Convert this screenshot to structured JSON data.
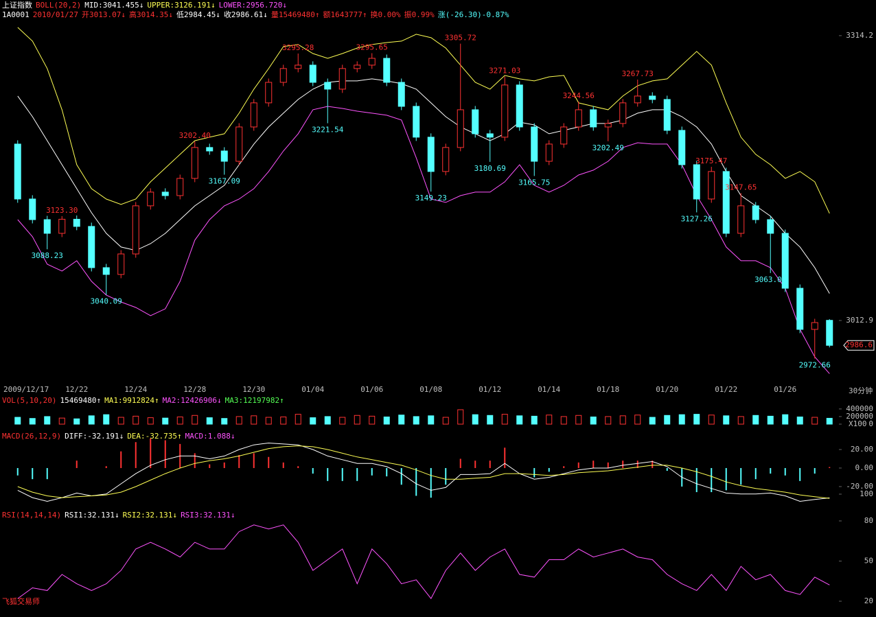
{
  "software": "飞狐交易师",
  "chart_data": [
    {
      "type": "candlestick",
      "header_lines": [
        [
          {
            "text": "上证指数",
            "color": "#ffffff"
          },
          {
            "text": "BOLL(20,2)",
            "color": "#ff3232"
          },
          {
            "text": "MID:3041.455↓",
            "color": "#ffffff"
          },
          {
            "text": "UPPER:3126.191↓",
            "color": "#ffff54"
          },
          {
            "text": "LOWER:2956.720↓",
            "color": "#ff54ff"
          }
        ],
        [
          {
            "text": "1A0001",
            "color": "#ffffff"
          },
          {
            "text": "2010/01/27",
            "color": "#ff3232"
          },
          {
            "text": "开3013.07↓",
            "color": "#ff3232"
          },
          {
            "text": "高3014.35↓",
            "color": "#ff3232"
          },
          {
            "text": "低2984.45↓",
            "color": "#ffffff"
          },
          {
            "text": "收2986.61↓",
            "color": "#ffffff"
          },
          {
            "text": "量15469480↑",
            "color": "#ff3232"
          },
          {
            "text": "额1643777↑",
            "color": "#ff3232"
          },
          {
            "text": "换0.00%",
            "color": "#ff3232"
          },
          {
            "text": "振0.99%",
            "color": "#ff3232"
          },
          {
            "text": "涨(-26.30)-0.87%",
            "color": "#54ffff"
          }
        ]
      ],
      "period": "30分钟",
      "categories": [
        "2009/12/17",
        null,
        null,
        null,
        "12/22",
        null,
        null,
        null,
        "12/24",
        null,
        null,
        null,
        "12/28",
        null,
        null,
        null,
        "12/30",
        null,
        null,
        null,
        "01/04",
        null,
        null,
        null,
        "01/06",
        null,
        null,
        null,
        "01/08",
        null,
        null,
        null,
        "01/12",
        null,
        null,
        null,
        "01/14",
        null,
        null,
        null,
        "01/18",
        null,
        null,
        null,
        "01/20",
        null,
        null,
        null,
        "01/22",
        null,
        null,
        null,
        "01/26",
        null,
        null,
        null
      ],
      "open": [
        3199.5,
        3141.4,
        3119.6,
        3105.1,
        3120.0,
        3112.4,
        3068.8,
        3061.6,
        3083.3,
        3134.2,
        3148.7,
        3145.0,
        3163.2,
        3195.9,
        3192.2,
        3181.3,
        3217.6,
        3243.1,
        3264.8,
        3279.4,
        3283.0,
        3264.8,
        3257.6,
        3279.4,
        3283.0,
        3290.2,
        3264.8,
        3239.4,
        3206.8,
        3170.5,
        3195.9,
        3235.8,
        3210.4,
        3206.8,
        3262.0,
        3217.6,
        3181.3,
        3199.5,
        3217.6,
        3235.8,
        3217.6,
        3221.3,
        3243.1,
        3250.3,
        3246.7,
        3214.0,
        3177.7,
        3141.4,
        3170.5,
        3105.1,
        3134.2,
        3119.6,
        3105.1,
        3047.0,
        3003.5,
        3013.07
      ],
      "high": [
        3203.5,
        3145.4,
        3123.6,
        3123.3,
        3124.0,
        3116.4,
        3072.8,
        3087.3,
        3138.2,
        3152.7,
        3152.7,
        3167.2,
        3202.4,
        3199.9,
        3196.2,
        3221.6,
        3247.1,
        3268.8,
        3283.4,
        3295.28,
        3287.0,
        3268.8,
        3283.4,
        3287.0,
        3295.65,
        3294.2,
        3268.8,
        3243.4,
        3210.8,
        3199.9,
        3305.72,
        3239.8,
        3214.4,
        3271.03,
        3266.0,
        3221.6,
        3203.5,
        3221.6,
        3244.56,
        3239.8,
        3225.3,
        3247.1,
        3267.73,
        3254.3,
        3250.7,
        3218.0,
        3181.7,
        3175.47,
        3174.5,
        3147.65,
        3138.2,
        3123.6,
        3109.1,
        3051.0,
        3014.7,
        3014.35
      ],
      "low": [
        3137.4,
        3115.6,
        3088.23,
        3101.1,
        3108.4,
        3064.8,
        3040.09,
        3057.6,
        3079.3,
        3130.2,
        3141.0,
        3141.0,
        3159.2,
        3188.2,
        3167.09,
        3177.3,
        3213.6,
        3239.1,
        3260.8,
        3275.4,
        3260.8,
        3221.54,
        3253.6,
        3275.4,
        3279.0,
        3260.8,
        3235.4,
        3202.8,
        3149.23,
        3166.5,
        3191.9,
        3206.4,
        3180.69,
        3202.8,
        3213.6,
        3165.75,
        3177.3,
        3195.5,
        3213.6,
        3213.6,
        3202.49,
        3217.3,
        3239.1,
        3242.7,
        3210.0,
        3173.7,
        3127.26,
        3137.4,
        3101.1,
        3101.1,
        3115.6,
        3063.09,
        3043.0,
        2999.5,
        2972.66,
        2984.45
      ],
      "close": [
        3141.4,
        3119.6,
        3105.1,
        3120.0,
        3112.4,
        3068.8,
        3061.6,
        3083.3,
        3134.2,
        3148.7,
        3145.0,
        3163.2,
        3195.9,
        3192.2,
        3181.3,
        3217.6,
        3243.1,
        3264.8,
        3279.4,
        3283.0,
        3264.8,
        3257.6,
        3279.4,
        3283.0,
        3290.2,
        3264.8,
        3239.4,
        3206.8,
        3170.5,
        3195.9,
        3235.8,
        3210.4,
        3206.8,
        3262.0,
        3217.6,
        3181.3,
        3199.5,
        3217.6,
        3235.8,
        3217.6,
        3221.3,
        3243.1,
        3250.3,
        3246.7,
        3214.0,
        3177.7,
        3141.4,
        3170.5,
        3105.1,
        3134.2,
        3119.6,
        3105.1,
        3047.0,
        3003.5,
        3010.7,
        2986.61
      ],
      "high_labels": [
        null,
        null,
        null,
        "3123.30",
        null,
        null,
        null,
        null,
        null,
        null,
        null,
        null,
        "3202.40",
        null,
        null,
        null,
        null,
        null,
        null,
        "3295.28",
        null,
        null,
        null,
        null,
        "3295.65",
        null,
        null,
        null,
        null,
        null,
        "3305.72",
        null,
        null,
        "3271.03",
        null,
        null,
        null,
        null,
        "3244.56",
        null,
        null,
        null,
        "3267.73",
        null,
        null,
        null,
        null,
        "3175.47",
        null,
        "3147.65",
        null,
        null,
        null,
        null,
        null,
        null
      ],
      "low_labels": [
        null,
        null,
        "3088.23",
        null,
        null,
        null,
        "3040.09",
        null,
        null,
        null,
        null,
        null,
        null,
        null,
        "3167.09",
        null,
        null,
        null,
        null,
        null,
        null,
        "3221.54",
        null,
        null,
        null,
        null,
        null,
        null,
        "3149.23",
        null,
        null,
        null,
        "3180.69",
        null,
        null,
        "3165.75",
        null,
        null,
        null,
        null,
        "3202.49",
        null,
        null,
        null,
        null,
        null,
        "3127.26",
        null,
        null,
        null,
        null,
        "3063.09",
        null,
        null,
        "2972.66",
        null
      ],
      "up_color": "#ff3232",
      "down_color": "#54ffff",
      "series": [
        {
          "color": "#ffffff",
          "values": [
            3250.3,
            3228.5,
            3203.1,
            3177.7,
            3152.3,
            3126.9,
            3105.1,
            3090.6,
            3087.0,
            3094.2,
            3105.1,
            3119.6,
            3134.2,
            3145.0,
            3155.9,
            3177.7,
            3199.5,
            3217.6,
            3232.2,
            3246.7,
            3257.6,
            3264.8,
            3266.3,
            3266.3,
            3268.5,
            3266.3,
            3263.4,
            3257.6,
            3243.1,
            3228.5,
            3217.6,
            3210.4,
            3203.1,
            3210.4,
            3222.7,
            3219.8,
            3210.4,
            3214.0,
            3217.6,
            3221.3,
            3221.3,
            3224.9,
            3232.2,
            3235.8,
            3235.8,
            3228.5,
            3217.6,
            3199.5,
            3170.5,
            3145.0,
            3134.2,
            3123.3,
            3105.1,
            3090.6,
            3068.8,
            3041.455
          ]
        },
        {
          "color": "#ffff54",
          "values": [
            3322.9,
            3308.4,
            3279.4,
            3235.8,
            3177.7,
            3152.3,
            3141.4,
            3135.6,
            3141.4,
            3159.6,
            3174.1,
            3188.6,
            3203.1,
            3206.8,
            3210.4,
            3232.2,
            3257.6,
            3279.4,
            3302.6,
            3304.8,
            3295.3,
            3290.2,
            3295.3,
            3301.1,
            3304.8,
            3306.9,
            3308.4,
            3315.7,
            3312.0,
            3301.1,
            3283.0,
            3264.8,
            3257.6,
            3272.1,
            3268.5,
            3266.3,
            3270.6,
            3272.1,
            3243.1,
            3239.4,
            3235.8,
            3250.3,
            3261.2,
            3266.3,
            3268.5,
            3283.0,
            3297.5,
            3283.0,
            3243.1,
            3206.8,
            3188.6,
            3177.7,
            3163.2,
            3170.5,
            3159.6,
            3126.191
          ]
        },
        {
          "color": "#ff54ff",
          "values": [
            3119.6,
            3101.5,
            3072.4,
            3065.2,
            3076.1,
            3054.3,
            3039.8,
            3032.5,
            3026.7,
            3018.0,
            3025.3,
            3054.3,
            3097.9,
            3119.6,
            3134.2,
            3141.4,
            3152.3,
            3170.5,
            3192.2,
            3210.4,
            3235.8,
            3239.4,
            3237.2,
            3234.3,
            3232.2,
            3230.0,
            3224.9,
            3185.0,
            3141.4,
            3137.8,
            3145.0,
            3148.7,
            3148.7,
            3159.6,
            3177.7,
            3155.9,
            3148.7,
            3155.9,
            3166.8,
            3171.9,
            3181.3,
            3195.9,
            3200.9,
            3199.5,
            3199.5,
            3177.7,
            3145.0,
            3119.6,
            3090.6,
            3076.1,
            3076.1,
            3068.8,
            3047.0,
            3003.5,
            2974.4,
            2956.72
          ]
        }
      ],
      "ylim": [
        2949,
        3341
      ],
      "yticks": [
        3314.2,
        3012.9
      ],
      "last_price": 2986.6
    },
    {
      "type": "bar",
      "header_lines": [
        [
          {
            "text": "VOL(5,10,20)",
            "color": "#ff3232"
          },
          {
            "text": "15469480↑",
            "color": "#ffffff"
          },
          {
            "text": "MA1:9912824↑",
            "color": "#ffff54"
          },
          {
            "text": "MA2:12426906↓",
            "color": "#ff54ff"
          },
          {
            "text": "MA3:12197982↑",
            "color": "#54ff54"
          }
        ]
      ],
      "unit_label": "X100",
      "values": [
        180000,
        150000,
        200000,
        160000,
        140000,
        220000,
        250000,
        180000,
        210000,
        170000,
        160000,
        190000,
        230000,
        170000,
        150000,
        200000,
        220000,
        180000,
        190000,
        260000,
        170000,
        200000,
        180000,
        230000,
        210000,
        190000,
        240000,
        200000,
        220000,
        180000,
        380000,
        250000,
        230000,
        260000,
        220000,
        210000,
        240000,
        200000,
        230000,
        190000,
        200000,
        220000,
        240000,
        180000,
        230000,
        250000,
        260000,
        240000,
        220000,
        200000,
        230000,
        210000,
        250000,
        190000,
        180000,
        154694.8
      ],
      "ylim": [
        0,
        470000
      ],
      "yticks": [
        400000,
        200000,
        0
      ]
    },
    {
      "type": "macd",
      "header_lines": [
        [
          {
            "text": "MACD(26,12,9)",
            "color": "#ff3232"
          },
          {
            "text": "DIFF:-32.191↓",
            "color": "#ffffff"
          },
          {
            "text": "DEA:-32.735↑",
            "color": "#ffff54"
          },
          {
            "text": "MACD:1.088↓",
            "color": "#ff54ff"
          }
        ]
      ],
      "histogram": {
        "pos_color": "#ff3232",
        "neg_color": "#54ffff",
        "values": [
          -8,
          -12,
          -12,
          0,
          8,
          0,
          2,
          18,
          28,
          32,
          30,
          26,
          16,
          4,
          6,
          14,
          16,
          12,
          6,
          2,
          -6,
          -14,
          -14,
          -14,
          -8,
          -9,
          -18,
          -30,
          -32,
          -18,
          10,
          8,
          8,
          22,
          0,
          -10,
          -4,
          2,
          6,
          8,
          6,
          8,
          8,
          8,
          -3,
          -20,
          -26,
          -26,
          -24,
          -18,
          -12,
          -6,
          -8,
          -14,
          -6,
          1.088
        ]
      },
      "series": [
        {
          "color": "#ffffff",
          "values": [
            -24,
            -32,
            -36,
            -32,
            -27,
            -30,
            -28,
            -17,
            -6,
            3,
            9,
            13,
            13,
            10,
            13,
            20,
            25,
            27,
            26,
            25,
            20,
            13,
            9,
            5,
            5,
            1.5,
            -6,
            -17,
            -24,
            -21,
            -7,
            -7,
            -6,
            5,
            -6,
            -12,
            -10,
            -6,
            -2,
            0,
            0,
            3,
            5,
            7,
            1.5,
            -10,
            -17,
            -22,
            -27,
            -28,
            -28,
            -27,
            -30,
            -36,
            -34,
            -32.191
          ]
        },
        {
          "color": "#ffff54",
          "values": [
            -20,
            -26,
            -30,
            -32,
            -31,
            -30,
            -29,
            -26,
            -20,
            -13,
            -6,
            0,
            5,
            8,
            10,
            13,
            17,
            21,
            23,
            24,
            23,
            20,
            16,
            12,
            9,
            6,
            3,
            -2,
            -8,
            -12,
            -12,
            -11,
            -10,
            -6,
            -6,
            -7,
            -8,
            -7,
            -5,
            -4,
            -3,
            -1,
            1,
            3,
            3,
            0,
            -4,
            -9,
            -15,
            -19,
            -22,
            -24,
            -26,
            -29,
            -31,
            -32.735
          ]
        }
      ],
      "ylim": [
        -39.3,
        31.1
      ],
      "yticks": [
        {
          "value": 20,
          "label": "20.00"
        },
        {
          "value": 0,
          "label": "0.00"
        },
        {
          "value": -20,
          "label": "-20.00"
        }
      ]
    },
    {
      "type": "line",
      "header_lines": [
        [
          {
            "text": "RSI(14,14,14)",
            "color": "#ff3232"
          },
          {
            "text": "RSI1:32.131↓",
            "color": "#ffffff"
          },
          {
            "text": "RSI2:32.131↓",
            "color": "#ffff54"
          },
          {
            "text": "RSI3:32.131↓",
            "color": "#ff54ff"
          }
        ]
      ],
      "series": [
        {
          "color": "#ff54ff",
          "values": [
            22,
            30,
            28,
            40,
            33,
            28,
            33,
            43,
            59,
            64,
            59,
            53,
            64,
            59,
            59,
            72,
            77,
            74,
            77,
            64,
            43,
            51,
            59,
            33,
            59,
            48,
            33,
            36,
            22,
            43,
            56,
            43,
            53,
            59,
            40,
            38,
            51,
            51,
            59,
            53,
            56,
            59,
            53,
            51,
            40,
            33,
            28,
            40,
            28,
            46,
            36,
            40,
            28,
            25,
            38,
            32.131
          ]
        }
      ],
      "ylim": [
        8.2,
        100
      ],
      "yticks": [
        100,
        80,
        50,
        20
      ]
    }
  ]
}
